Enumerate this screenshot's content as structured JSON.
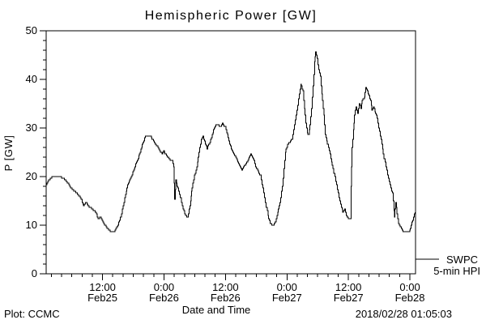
{
  "window": {
    "background": "#ffffff",
    "line_color": "#000000"
  },
  "title": "Hemispheric Power [GW]",
  "y_axis": {
    "label": "P [GW]",
    "min": 0,
    "max": 50,
    "major_tick_step": 10,
    "minor_tick_step": 2,
    "tick_labels": [
      "0",
      "10",
      "20",
      "30",
      "40",
      "50"
    ]
  },
  "x_axis": {
    "label": "Date and Time",
    "minor_tick_step_hours": 2,
    "major_tick_step_hours": 12,
    "ticks": [
      {
        "hour": 12,
        "time": "12:00",
        "date": "Feb25"
      },
      {
        "hour": 24,
        "time": "0:00",
        "date": "Feb26"
      },
      {
        "hour": 36,
        "time": "12:00",
        "date": "Feb26"
      },
      {
        "hour": 48,
        "time": "0:00",
        "date": "Feb27"
      },
      {
        "hour": 60,
        "time": "12:00",
        "date": "Feb27"
      },
      {
        "hour": 72,
        "time": "0:00",
        "date": "Feb28"
      }
    ]
  },
  "legend": {
    "source": "SWPC",
    "series": "5-min HPI"
  },
  "footer": {
    "left": "Plot: CCMC",
    "center": "Date and Time",
    "right": "2018/02/28 01:05:03"
  },
  "chart_data": {
    "type": "line",
    "title": "Hemispheric Power [GW]",
    "xlabel": "Date and Time",
    "ylabel": "P [GW]",
    "ylim": [
      0,
      50
    ],
    "xlim_hours": [
      1.0,
      73.1
    ],
    "x_unit": "hours since 2018-02-25 00:00 UT",
    "grid": false,
    "line_style": "5-minute staircase, 1px black",
    "legend_position": "outside-right-bottom",
    "series": [
      {
        "name": "SWPC 5-min HPI",
        "color": "#000000",
        "points": [
          [
            1.0,
            18.3
          ],
          [
            1.5,
            19.3
          ],
          [
            2.1,
            20
          ],
          [
            4.3,
            19.8
          ],
          [
            5.0,
            19
          ],
          [
            5.6,
            18
          ],
          [
            6.2,
            17.3
          ],
          [
            6.8,
            16.7
          ],
          [
            7.5,
            16
          ],
          [
            7.9,
            15.2
          ],
          [
            8.3,
            14
          ],
          [
            8.7,
            14.7
          ],
          [
            9.4,
            13.7
          ],
          [
            10.0,
            13.3
          ],
          [
            10.6,
            12.7
          ],
          [
            11.1,
            11.3
          ],
          [
            11.6,
            11.7
          ],
          [
            12.2,
            10.3
          ],
          [
            12.7,
            9.7
          ],
          [
            13.2,
            9
          ],
          [
            13.6,
            8.6
          ],
          [
            14.3,
            8.6
          ],
          [
            14.6,
            9.4
          ],
          [
            15.0,
            10
          ],
          [
            15.5,
            11.5
          ],
          [
            16.0,
            14
          ],
          [
            16.5,
            16.3
          ],
          [
            16.9,
            18.3
          ],
          [
            17.6,
            20
          ],
          [
            18.2,
            21.7
          ],
          [
            18.8,
            23.3
          ],
          [
            19.5,
            25.5
          ],
          [
            19.9,
            27
          ],
          [
            20.4,
            28.3
          ],
          [
            21.4,
            28.3
          ],
          [
            21.8,
            27.5
          ],
          [
            22.3,
            26.7
          ],
          [
            22.8,
            26
          ],
          [
            23.3,
            25
          ],
          [
            23.6,
            24.7
          ],
          [
            23.9,
            25.3
          ],
          [
            24.5,
            24.3
          ],
          [
            25.2,
            23.3
          ],
          [
            25.6,
            23.2
          ],
          [
            25.9,
            21.9
          ],
          [
            26.1,
            15.2
          ],
          [
            26.3,
            19.2
          ],
          [
            26.7,
            17.5
          ],
          [
            27.2,
            15.5
          ],
          [
            27.7,
            13.3
          ],
          [
            28.2,
            12
          ],
          [
            28.6,
            11.7
          ],
          [
            29.1,
            14
          ],
          [
            29.3,
            16
          ],
          [
            29.5,
            17.8
          ],
          [
            29.9,
            20.2
          ],
          [
            30.4,
            22
          ],
          [
            30.8,
            25
          ],
          [
            31.3,
            27.5
          ],
          [
            31.6,
            28.3
          ],
          [
            32.1,
            26.8
          ],
          [
            32.4,
            25.8
          ],
          [
            32.9,
            27
          ],
          [
            33.4,
            28.5
          ],
          [
            33.8,
            30
          ],
          [
            34.3,
            30.8
          ],
          [
            35.0,
            30.2
          ],
          [
            35.4,
            31
          ],
          [
            35.9,
            30.2
          ],
          [
            36.4,
            28.5
          ],
          [
            36.8,
            26.7
          ],
          [
            37.3,
            25.3
          ],
          [
            37.8,
            24.3
          ],
          [
            38.3,
            23.3
          ],
          [
            38.7,
            22.3
          ],
          [
            39.2,
            21.3
          ],
          [
            39.5,
            22
          ],
          [
            40.0,
            22.7
          ],
          [
            40.5,
            23.8
          ],
          [
            40.9,
            24.7
          ],
          [
            41.4,
            23.8
          ],
          [
            41.9,
            22
          ],
          [
            42.4,
            21
          ],
          [
            42.8,
            20.2
          ],
          [
            43.3,
            17.5
          ],
          [
            43.8,
            14.5
          ],
          [
            44.3,
            12
          ],
          [
            44.7,
            10.3
          ],
          [
            45.2,
            9.9
          ],
          [
            45.7,
            10.5
          ],
          [
            46.2,
            12.5
          ],
          [
            46.6,
            14.5
          ],
          [
            47.1,
            18
          ],
          [
            47.4,
            21.5
          ],
          [
            47.7,
            25
          ],
          [
            48.1,
            26.7
          ],
          [
            48.5,
            27
          ],
          [
            49.0,
            27.8
          ],
          [
            49.5,
            30.5
          ],
          [
            49.9,
            33.5
          ],
          [
            50.4,
            37
          ],
          [
            50.7,
            39
          ],
          [
            51.1,
            37.5
          ],
          [
            51.4,
            34
          ],
          [
            51.7,
            31
          ],
          [
            52.0,
            29
          ],
          [
            52.2,
            28.5
          ],
          [
            52.5,
            30.5
          ],
          [
            52.8,
            34
          ],
          [
            53.1,
            38.5
          ],
          [
            53.4,
            43.5
          ],
          [
            53.6,
            45.7
          ],
          [
            53.9,
            44.3
          ],
          [
            54.2,
            42
          ],
          [
            54.5,
            40.5
          ],
          [
            54.8,
            37
          ],
          [
            55.2,
            32.5
          ],
          [
            55.5,
            28.8
          ],
          [
            55.9,
            26.5
          ],
          [
            56.4,
            24.5
          ],
          [
            57.0,
            21.7
          ],
          [
            57.5,
            19
          ],
          [
            58.0,
            16.5
          ],
          [
            58.5,
            14.2
          ],
          [
            58.9,
            12.8
          ],
          [
            59.3,
            13.3
          ],
          [
            59.6,
            12
          ],
          [
            60.0,
            11.3
          ],
          [
            60.4,
            11.3
          ],
          [
            60.5,
            18
          ],
          [
            60.7,
            26
          ],
          [
            61.0,
            29.5
          ],
          [
            61.2,
            32.7
          ],
          [
            61.5,
            34.3
          ],
          [
            61.8,
            33
          ],
          [
            62.1,
            35
          ],
          [
            62.4,
            34
          ],
          [
            62.7,
            35.8
          ],
          [
            63.1,
            36.3
          ],
          [
            63.4,
            38.3
          ],
          [
            63.7,
            37.5
          ],
          [
            64.0,
            36.8
          ],
          [
            64.3,
            35.5
          ],
          [
            64.6,
            33.5
          ],
          [
            64.9,
            34.3
          ],
          [
            65.3,
            33
          ],
          [
            65.6,
            32
          ],
          [
            65.9,
            30
          ],
          [
            66.4,
            27.5
          ],
          [
            66.8,
            24.7
          ],
          [
            67.3,
            22
          ],
          [
            67.8,
            19.5
          ],
          [
            68.3,
            17.5
          ],
          [
            68.6,
            16.7
          ],
          [
            68.9,
            13
          ],
          [
            69.0,
            11.7
          ],
          [
            69.2,
            14.7
          ],
          [
            69.5,
            12.3
          ],
          [
            69.8,
            10.2
          ],
          [
            70.3,
            9.3
          ],
          [
            70.8,
            8.5
          ],
          [
            71.7,
            8.5
          ],
          [
            72.1,
            9.4
          ],
          [
            72.4,
            10.5
          ],
          [
            72.7,
            11.7
          ],
          [
            73.0,
            12.7
          ]
        ]
      }
    ]
  }
}
